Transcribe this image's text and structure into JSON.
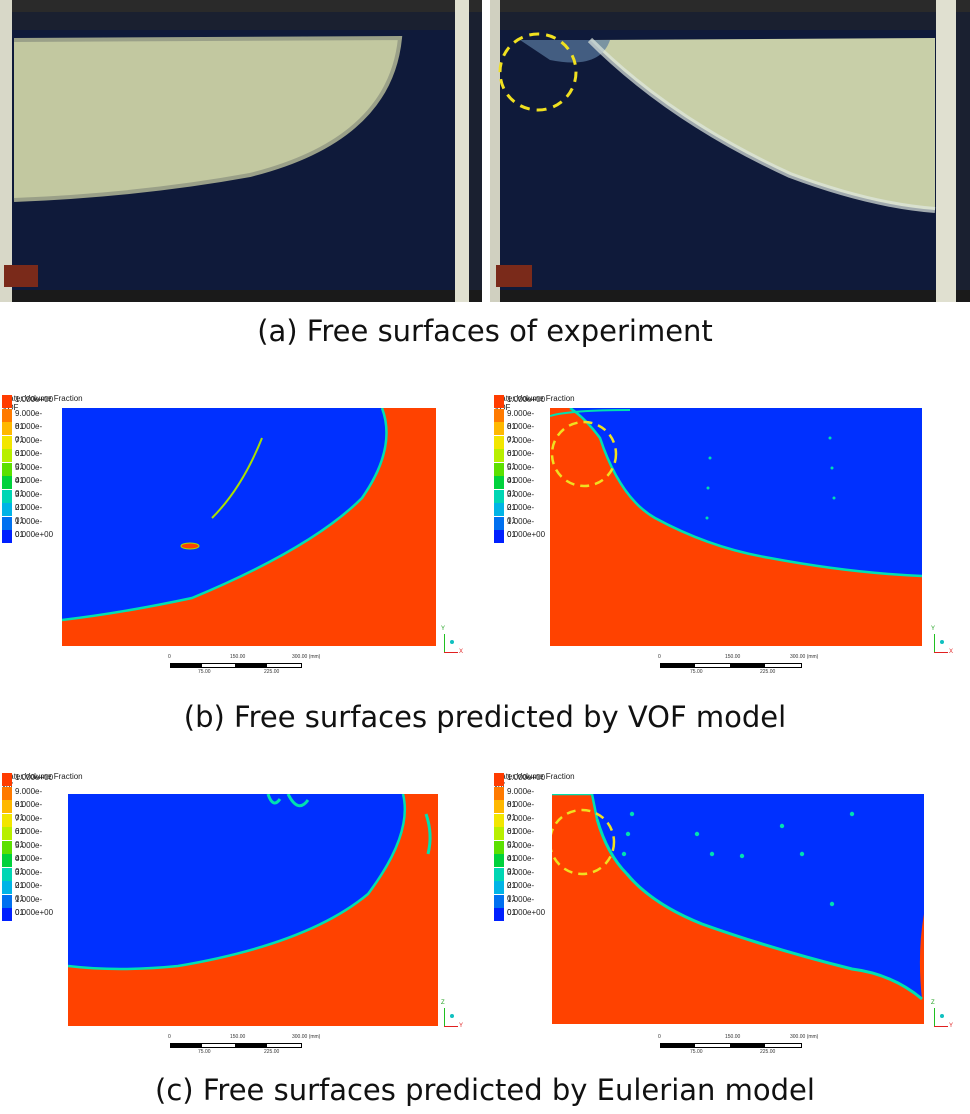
{
  "captions": {
    "a": "(a) Free surfaces of experiment",
    "b": "(b) Free surfaces predicted by VOF model",
    "c": "(c) Free surfaces predicted by Eulerian model"
  },
  "legend": {
    "title_line1": "Water.Volume Fraction",
    "vof_title_line2": "VOF",
    "euler_title_line2": "vof",
    "levels": [
      "1.000e+00",
      "9.000e-01",
      "8.000e-01",
      "7.000e-01",
      "6.000e-01",
      "5.000e-01",
      "4.000e-01",
      "3.000e-01",
      "2.000e-01",
      "1.000e-01",
      "0.000e+00"
    ],
    "colors": [
      "#ff3c00",
      "#ff7a00",
      "#ffb800",
      "#f2e600",
      "#b8ef00",
      "#5ce000",
      "#00d23c",
      "#00d6b4",
      "#00b4e6",
      "#0070f0",
      "#0020ff"
    ]
  },
  "scale_bar": {
    "start": "0",
    "mid_top": "150.00",
    "end_top": "300.00",
    "unit": "(mm)",
    "q1": "75.00",
    "q3": "225.00"
  },
  "axes": {
    "vof": {
      "vertical": "Y",
      "horizontal": "X"
    },
    "euler": {
      "vertical": "Z",
      "horizontal": "Y"
    }
  },
  "colors": {
    "water": "#ff4200",
    "air": "#0030ff",
    "interface": "#00e0b0",
    "highlight_circle": "#f0e020",
    "experiment_water": "#0f1a3a",
    "experiment_air": "#c8cfa8"
  }
}
